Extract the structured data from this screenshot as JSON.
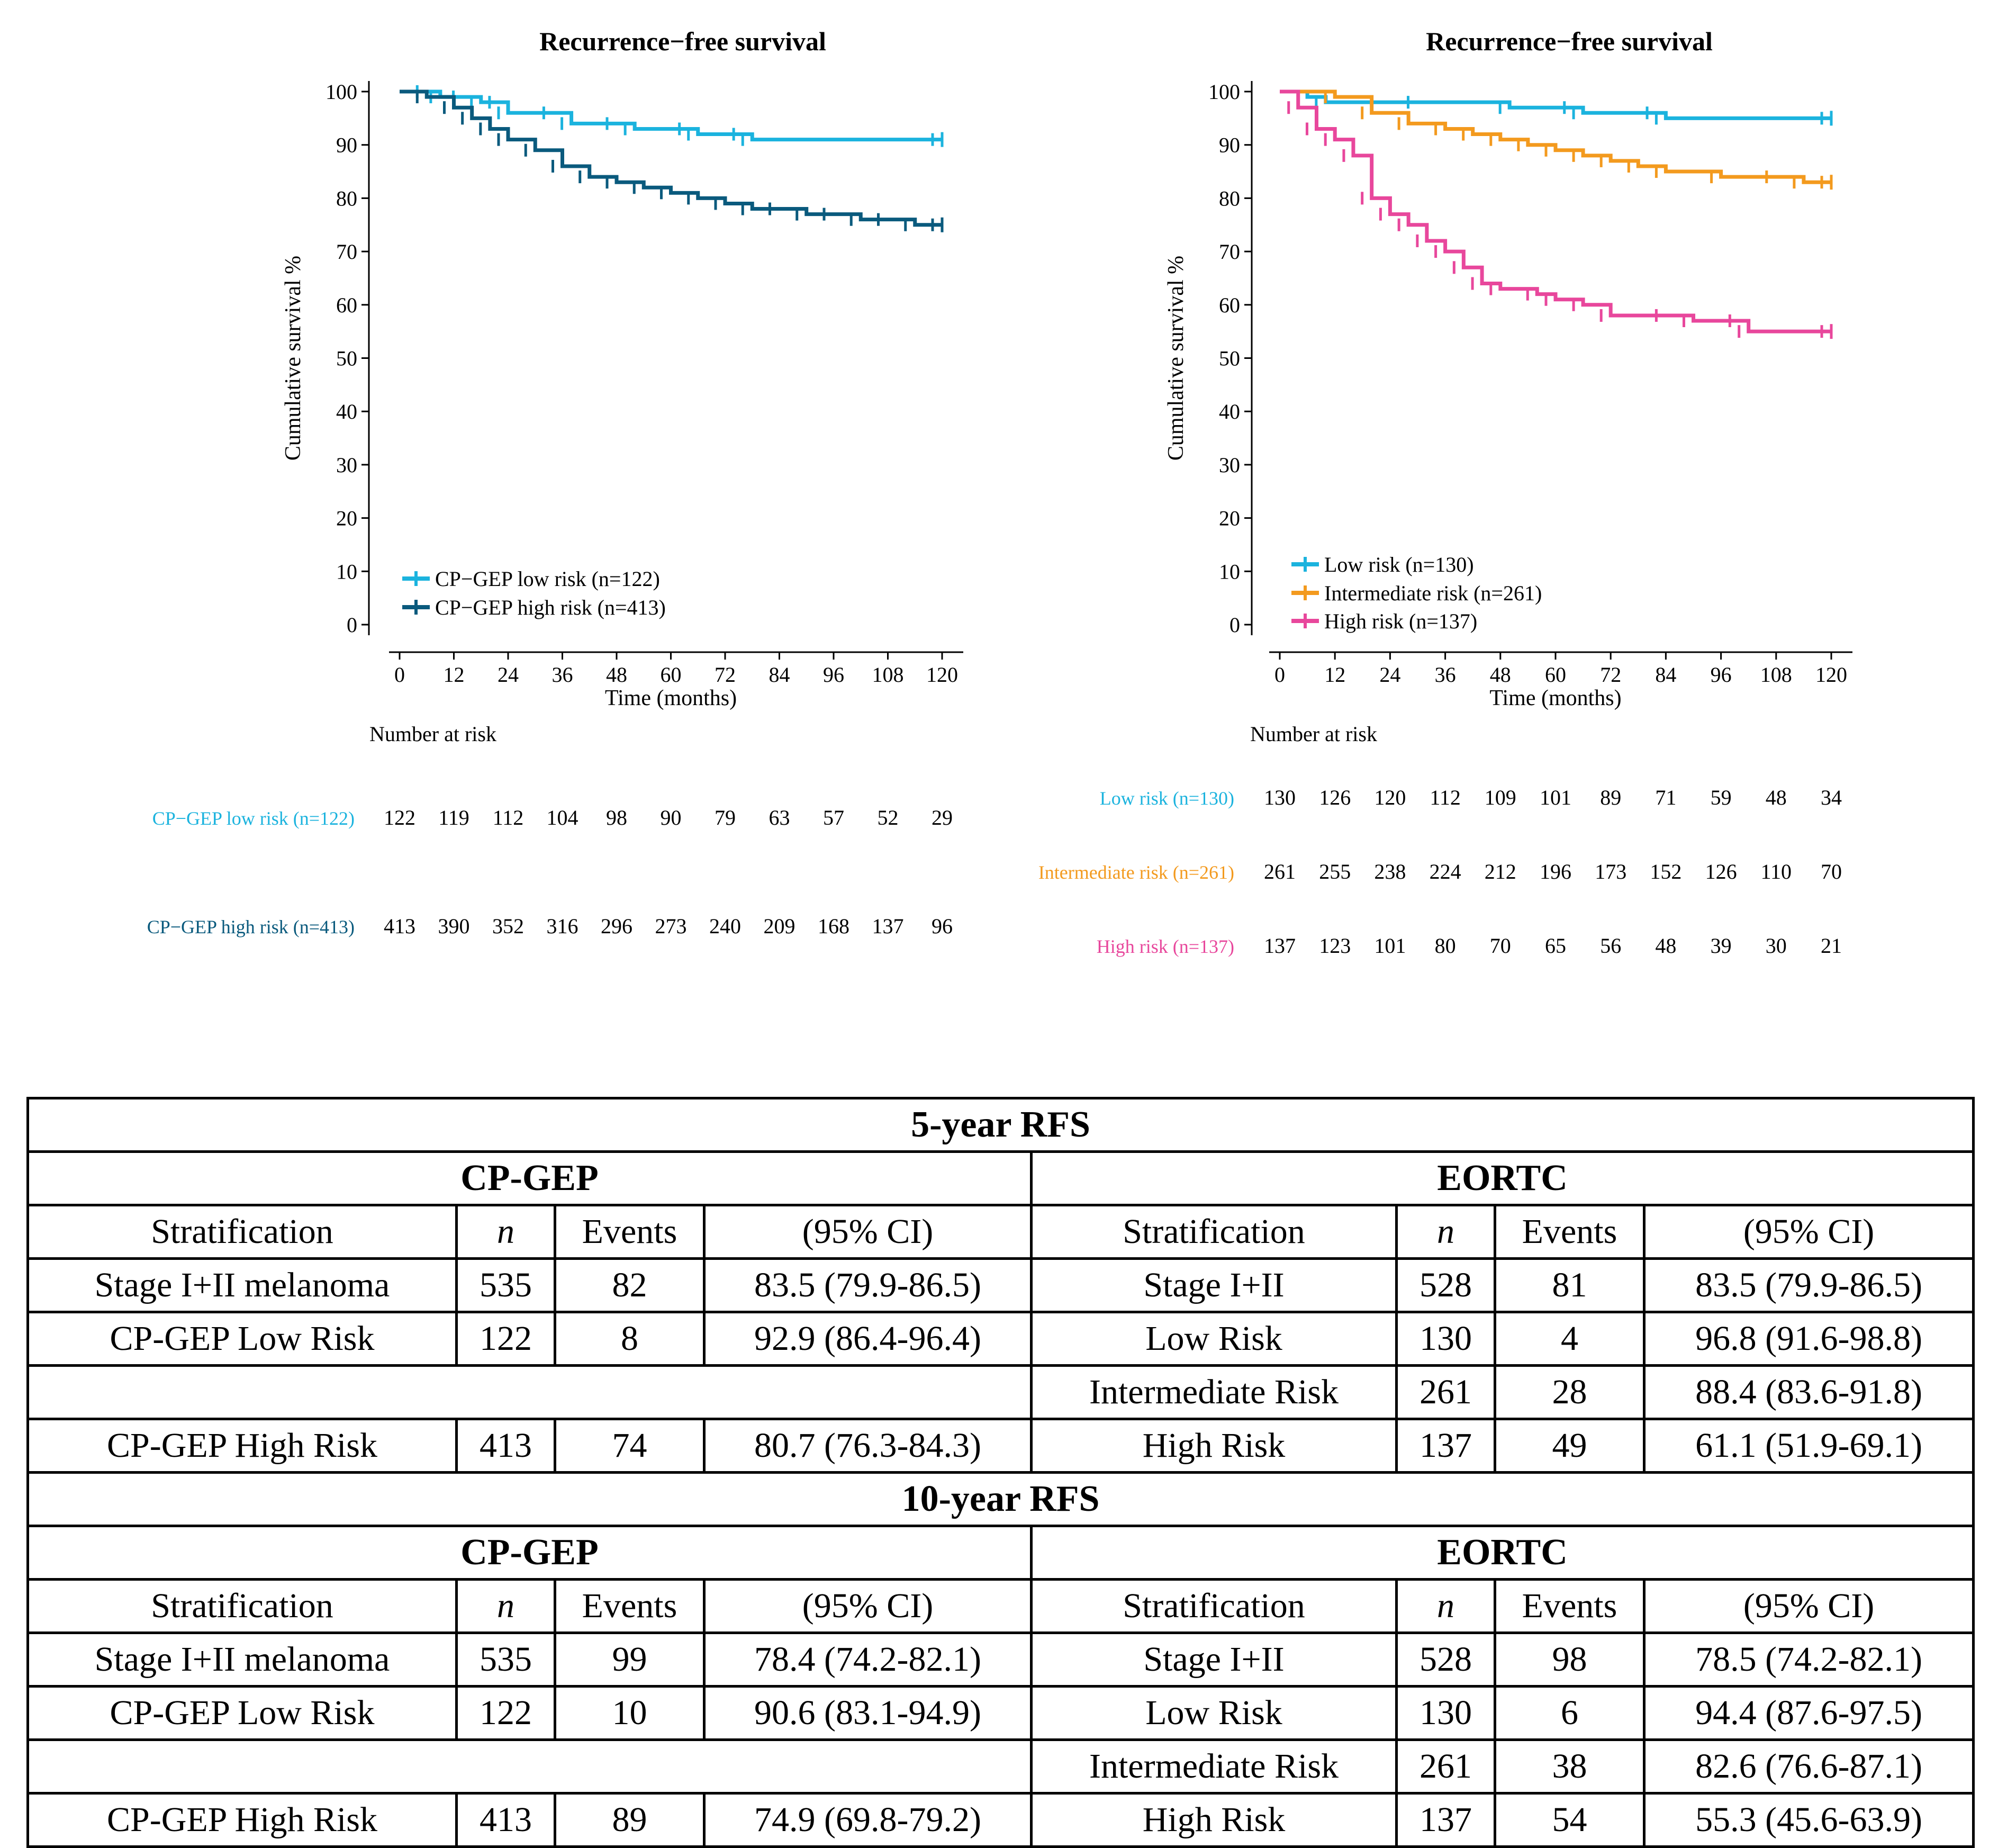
{
  "colors": {
    "cpgep_low": "#1bb3de",
    "cpgep_high": "#0a5a7d",
    "low": "#1bb3de",
    "intermediate": "#f39a1e",
    "high": "#e8479c",
    "axis": "#000000"
  },
  "chart_data": [
    {
      "type": "line",
      "title": "Recurrence−free survival",
      "xlabel": "Time (months)",
      "ylabel": "Cumulative survival %",
      "xlim": [
        0,
        120
      ],
      "ylim": [
        0,
        100
      ],
      "xticks": [
        0,
        12,
        24,
        36,
        48,
        60,
        72,
        84,
        96,
        108,
        120
      ],
      "yticks": [
        0,
        10,
        20,
        30,
        40,
        50,
        60,
        70,
        80,
        90,
        100
      ],
      "legend_position": "bottom-left",
      "risk_title": "Number at risk",
      "series": [
        {
          "name": "CP−GEP low risk (n=122)",
          "risk_label": "CP−GEP  low  risk   (n=122)",
          "color_key": "cpgep_low",
          "points": [
            [
              0,
              100
            ],
            [
              6,
              100
            ],
            [
              9,
              99
            ],
            [
              14,
              99
            ],
            [
              18,
              98
            ],
            [
              22,
              98
            ],
            [
              24,
              96
            ],
            [
              34,
              96
            ],
            [
              38,
              94
            ],
            [
              48,
              94
            ],
            [
              52,
              93
            ],
            [
              64,
              93
            ],
            [
              66,
              92
            ],
            [
              76,
              92
            ],
            [
              78,
              91
            ],
            [
              120,
              91
            ]
          ],
          "at_risk": [
            122,
            119,
            112,
            104,
            98,
            90,
            79,
            63,
            57,
            52,
            29
          ]
        },
        {
          "name": "CP−GEP high risk (n=413)",
          "risk_label": "CP−GEP  high  risk   (n=413)",
          "color_key": "cpgep_high",
          "points": [
            [
              0,
              100
            ],
            [
              6,
              99
            ],
            [
              12,
              97
            ],
            [
              16,
              95
            ],
            [
              20,
              93
            ],
            [
              24,
              91
            ],
            [
              30,
              89
            ],
            [
              36,
              86
            ],
            [
              42,
              84
            ],
            [
              48,
              83
            ],
            [
              54,
              82
            ],
            [
              60,
              81
            ],
            [
              66,
              80
            ],
            [
              72,
              79
            ],
            [
              78,
              78
            ],
            [
              84,
              78
            ],
            [
              90,
              77
            ],
            [
              96,
              77
            ],
            [
              102,
              76
            ],
            [
              108,
              76
            ],
            [
              114,
              75
            ],
            [
              120,
              75
            ]
          ],
          "at_risk": [
            413,
            390,
            352,
            316,
            296,
            273,
            240,
            209,
            168,
            137,
            96
          ]
        }
      ]
    },
    {
      "type": "line",
      "title": "Recurrence−free survival",
      "xlabel": "Time (months)",
      "ylabel": "Cumulative survival %",
      "xlim": [
        0,
        120
      ],
      "ylim": [
        0,
        100
      ],
      "xticks": [
        0,
        12,
        24,
        36,
        48,
        60,
        72,
        84,
        96,
        108,
        120
      ],
      "yticks": [
        0,
        10,
        20,
        30,
        40,
        50,
        60,
        70,
        80,
        90,
        100
      ],
      "legend_position": "bottom-left",
      "risk_title": "Number at risk",
      "series": [
        {
          "name": "Low risk (n=130)",
          "risk_label": "Low  risk   (n=130)",
          "color_key": "low",
          "points": [
            [
              0,
              100
            ],
            [
              6,
              99
            ],
            [
              10,
              98
            ],
            [
              30,
              98
            ],
            [
              50,
              97
            ],
            [
              64,
              97
            ],
            [
              66,
              96
            ],
            [
              82,
              96
            ],
            [
              84,
              95
            ],
            [
              120,
              95
            ]
          ],
          "at_risk": [
            130,
            126,
            120,
            112,
            109,
            101,
            89,
            71,
            59,
            48,
            34
          ]
        },
        {
          "name": "Intermediate risk (n=261)",
          "risk_label": "Intermediate  risk   (n=261)",
          "color_key": "intermediate",
          "points": [
            [
              0,
              100
            ],
            [
              12,
              99
            ],
            [
              20,
              96
            ],
            [
              28,
              94
            ],
            [
              36,
              93
            ],
            [
              42,
              92
            ],
            [
              48,
              91
            ],
            [
              54,
              90
            ],
            [
              60,
              89
            ],
            [
              66,
              88
            ],
            [
              72,
              87
            ],
            [
              78,
              86
            ],
            [
              84,
              85
            ],
            [
              96,
              84
            ],
            [
              108,
              84
            ],
            [
              114,
              83
            ],
            [
              120,
              83
            ]
          ],
          "at_risk": [
            261,
            255,
            238,
            224,
            212,
            196,
            173,
            152,
            126,
            110,
            70
          ]
        },
        {
          "name": "High risk (n=137)",
          "risk_label": "High risk   (n=137)",
          "color_key": "high",
          "points": [
            [
              0,
              100
            ],
            [
              4,
              97
            ],
            [
              8,
              93
            ],
            [
              12,
              91
            ],
            [
              16,
              88
            ],
            [
              20,
              80
            ],
            [
              24,
              77
            ],
            [
              28,
              75
            ],
            [
              32,
              72
            ],
            [
              36,
              70
            ],
            [
              40,
              67
            ],
            [
              44,
              64
            ],
            [
              48,
              63
            ],
            [
              56,
              62
            ],
            [
              60,
              61
            ],
            [
              66,
              60
            ],
            [
              72,
              58
            ],
            [
              84,
              58
            ],
            [
              90,
              57
            ],
            [
              100,
              57
            ],
            [
              102,
              55
            ],
            [
              120,
              55
            ]
          ],
          "at_risk": [
            137,
            123,
            101,
            80,
            70,
            65,
            56,
            48,
            39,
            30,
            21
          ]
        }
      ]
    }
  ],
  "table": {
    "five_year_title": "5-year RFS",
    "ten_year_title": "10-year RFS",
    "cpgep_header": "CP-GEP",
    "eortc_header": "EORTC",
    "col_strat": "Stratification",
    "col_n": "n",
    "col_events": "Events",
    "col_ci": "(95% CI)",
    "five_year_rows": [
      {
        "l_strat": "Stage I+II melanoma",
        "l_n": "535",
        "l_events": "82",
        "l_ci": "83.5 (79.9-86.5)",
        "r_strat": "Stage I+II",
        "r_n": "528",
        "r_events": "81",
        "r_ci": "83.5 (79.9-86.5)"
      },
      {
        "l_strat": "CP-GEP Low Risk",
        "l_n": "122",
        "l_events": "8",
        "l_ci": "92.9 (86.4-96.4)",
        "r_strat": "Low Risk",
        "r_n": "130",
        "r_events": "4",
        "r_ci": "96.8 (91.6-98.8)"
      },
      {
        "l_strat": "",
        "l_n": "",
        "l_events": "",
        "l_ci": "",
        "r_strat": "Intermediate Risk",
        "r_n": "261",
        "r_events": "28",
        "r_ci": "88.4 (83.6-91.8)"
      },
      {
        "l_strat": "CP-GEP High Risk",
        "l_n": "413",
        "l_events": "74",
        "l_ci": "80.7 (76.3-84.3)",
        "r_strat": "High Risk",
        "r_n": "137",
        "r_events": "49",
        "r_ci": "61.1 (51.9-69.1)"
      }
    ],
    "ten_year_rows": [
      {
        "l_strat": "Stage I+II melanoma",
        "l_n": "535",
        "l_events": "99",
        "l_ci": "78.4 (74.2-82.1)",
        "r_strat": "Stage I+II",
        "r_n": "528",
        "r_events": "98",
        "r_ci": "78.5 (74.2-82.1)"
      },
      {
        "l_strat": "CP-GEP Low Risk",
        "l_n": "122",
        "l_events": "10",
        "l_ci": "90.6 (83.1-94.9)",
        "r_strat": "Low Risk",
        "r_n": "130",
        "r_events": "6",
        "r_ci": "94.4 (87.6-97.5)"
      },
      {
        "l_strat": "",
        "l_n": "",
        "l_events": "",
        "l_ci": "",
        "r_strat": "Intermediate Risk",
        "r_n": "261",
        "r_events": "38",
        "r_ci": "82.6 (76.6-87.1)"
      },
      {
        "l_strat": "CP-GEP High Risk",
        "l_n": "413",
        "l_events": "89",
        "l_ci": "74.9 (69.8-79.2)",
        "r_strat": "High Risk",
        "r_n": "137",
        "r_events": "54",
        "r_ci": "55.3 (45.6-63.9)"
      }
    ]
  }
}
